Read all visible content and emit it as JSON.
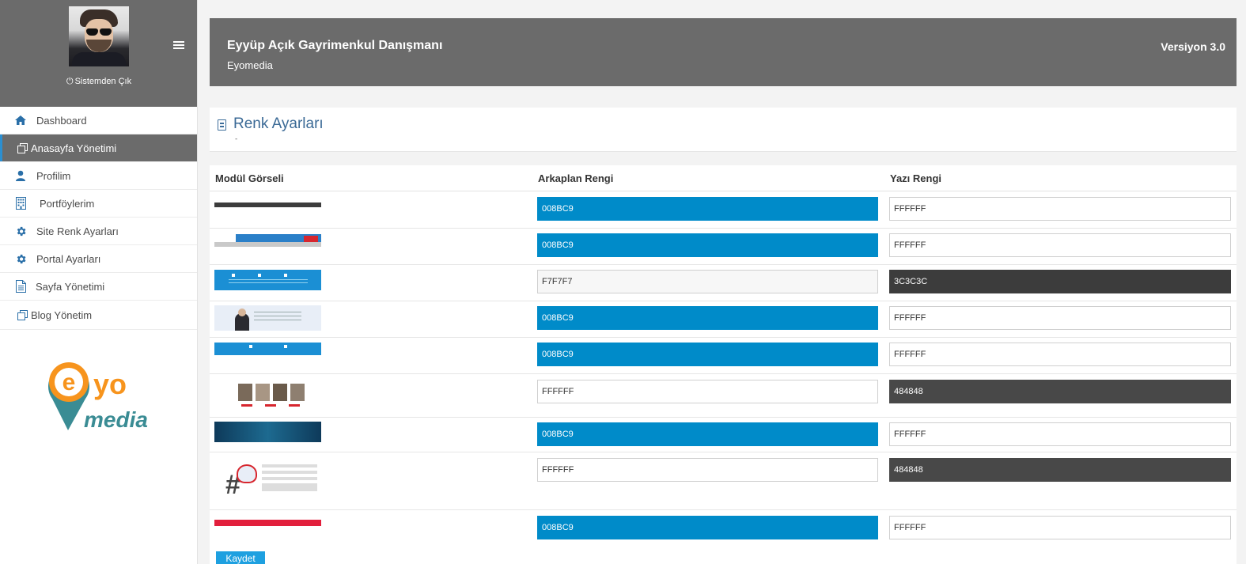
{
  "sidebar": {
    "logout_label": "Sistemden Çık",
    "items": [
      {
        "label": "Dashboard",
        "icon": "home-icon",
        "active": false
      },
      {
        "label": "Anasayfa Yönetimi",
        "icon": "copy-icon",
        "active": true
      },
      {
        "label": "Profilim",
        "icon": "user-icon",
        "active": false
      },
      {
        "label": "Portföylerim",
        "icon": "building-icon",
        "active": false
      },
      {
        "label": "Site Renk Ayarları",
        "icon": "gear-icon",
        "active": false
      },
      {
        "label": "Portal Ayarları",
        "icon": "gear-icon",
        "active": false
      },
      {
        "label": "Sayfa Yönetimi",
        "icon": "file-icon",
        "active": false
      },
      {
        "label": "Blog Yönetim",
        "icon": "copy-icon",
        "active": false
      }
    ],
    "logo": {
      "letter": "e",
      "yo": "yo",
      "media": "media",
      "colors": {
        "orange": "#f7941d",
        "teal": "#3a8c94"
      }
    }
  },
  "header": {
    "title": "Eyyüp Açık Gayrimenkul Danışmanı",
    "subtitle": "Eyomedia",
    "version": "Versiyon 3.0"
  },
  "panel": {
    "title": "Renk Ayarları",
    "footnote": "-"
  },
  "table": {
    "columns": [
      "Modül Görseli",
      "Arkaplan Rengi",
      "Yazı Rengi"
    ],
    "rows": [
      {
        "bg": "008BC9",
        "fg": "FFFFFF"
      },
      {
        "bg": "008BC9",
        "fg": "FFFFFF"
      },
      {
        "bg": "F7F7F7",
        "fg": "3C3C3C"
      },
      {
        "bg": "008BC9",
        "fg": "FFFFFF"
      },
      {
        "bg": "008BC9",
        "fg": "FFFFFF"
      },
      {
        "bg": "FFFFFF",
        "fg": "484848"
      },
      {
        "bg": "008BC9",
        "fg": "FFFFFF"
      },
      {
        "bg": "FFFFFF",
        "fg": "484848"
      },
      {
        "bg": "008BC9",
        "fg": "FFFFFF"
      }
    ]
  },
  "save_label": "Kaydet",
  "colors": {
    "sidebar_dark": "#6b6b6b",
    "accent_blue": "#008BC9",
    "title_blue": "#3b6a96"
  }
}
